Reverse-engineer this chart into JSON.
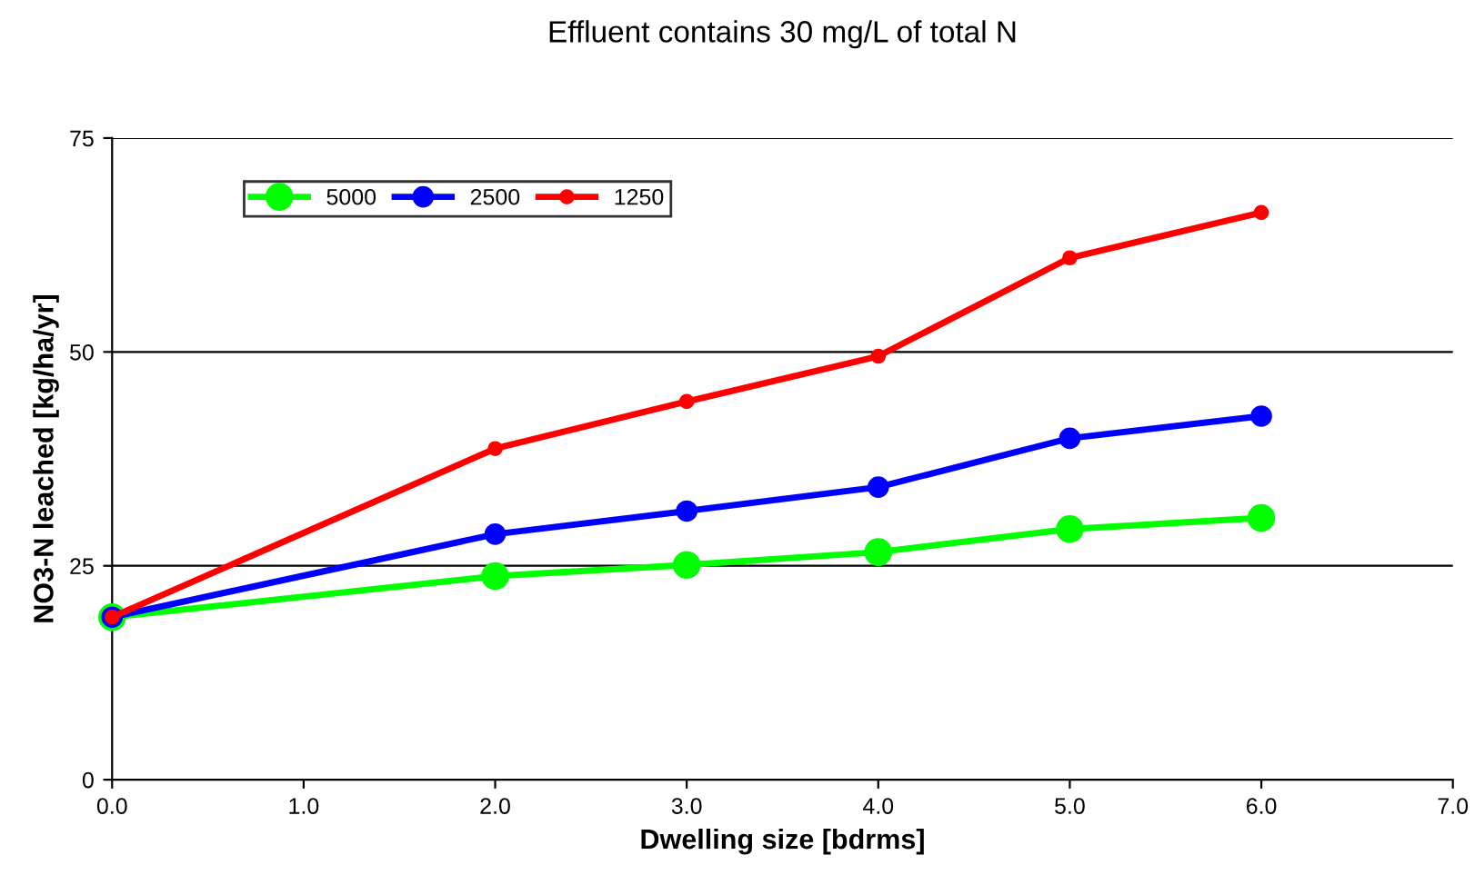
{
  "chart_data": {
    "type": "line",
    "title": "Effluent contains 30 mg/L of total N",
    "xlabel": "Dwelling size [bdrms]",
    "ylabel": "NO3-N leached [kg/ha/yr]",
    "x": [
      0,
      2,
      3,
      4,
      5,
      6
    ],
    "series": [
      {
        "name": "5000",
        "color": "#00ff00",
        "values": [
          19,
          23.8,
          25.1,
          26.6,
          29.3,
          30.6
        ]
      },
      {
        "name": "2500",
        "color": "#0000ff",
        "values": [
          19,
          28.7,
          31.4,
          34.2,
          39.9,
          42.5
        ]
      },
      {
        "name": "1250",
        "color": "#ff0000",
        "values": [
          19,
          38.7,
          44.2,
          49.5,
          61.0,
          66.3
        ]
      }
    ],
    "xlim": [
      0,
      7
    ],
    "xticks": [
      {
        "value": 0,
        "label": "0.0"
      },
      {
        "value": 1,
        "label": "1.0"
      },
      {
        "value": 2,
        "label": "2.0"
      },
      {
        "value": 3,
        "label": "3.0"
      },
      {
        "value": 4,
        "label": "4.0"
      },
      {
        "value": 5,
        "label": "5.0"
      },
      {
        "value": 6,
        "label": "6.0"
      },
      {
        "value": 7,
        "label": "7.0"
      }
    ],
    "ylim": [
      0,
      75
    ],
    "yticks": [
      0,
      25,
      50,
      75
    ],
    "grid": "y",
    "legend": "top left",
    "marker": "circle",
    "line_style": "solid"
  }
}
